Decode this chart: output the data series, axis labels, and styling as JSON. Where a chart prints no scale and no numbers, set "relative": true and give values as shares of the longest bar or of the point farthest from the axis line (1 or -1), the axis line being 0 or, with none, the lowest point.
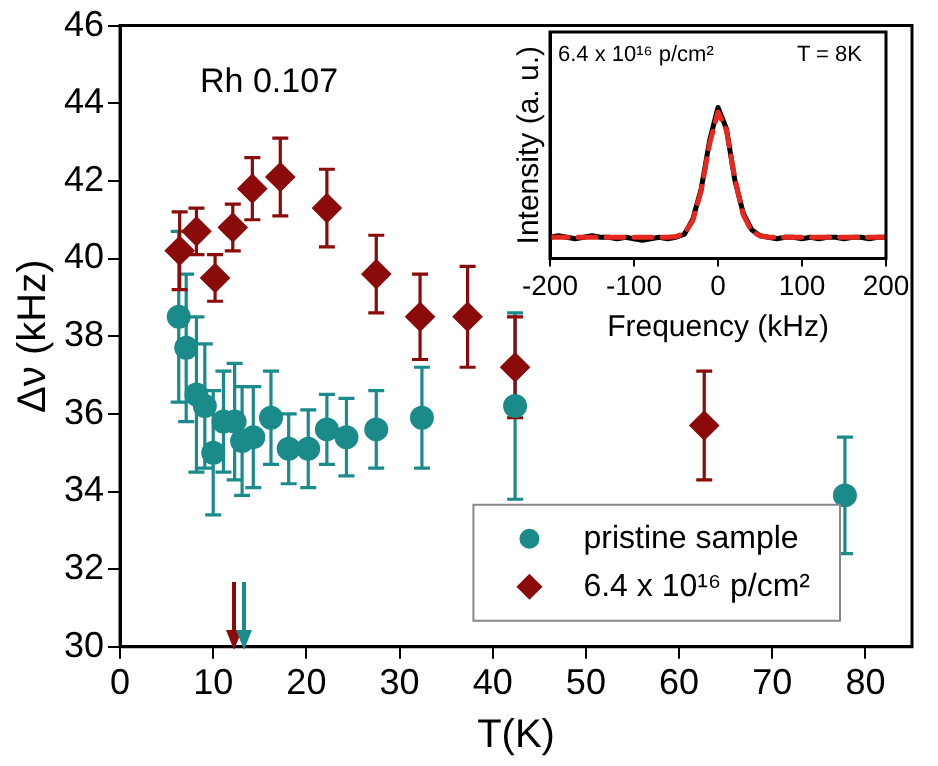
{
  "chart_data": [
    {
      "type": "scatter",
      "xlabel": "T(K)",
      "ylabel": "Δν (kHz)",
      "annotations": [
        "Rh 0.107"
      ],
      "xlim": [
        0,
        85
      ],
      "xticks": [
        0,
        10,
        20,
        30,
        40,
        50,
        60,
        70,
        80
      ],
      "ylim": [
        30,
        46
      ],
      "yticks": [
        30,
        32,
        34,
        36,
        38,
        40,
        42,
        44,
        46
      ],
      "grid": false,
      "legend": "bottom right",
      "series": [
        {
          "name": "pristine sample",
          "color": "#1a8a8a",
          "marker": "circle",
          "x": [
            6.3,
            7.1,
            8.2,
            9.1,
            10.0,
            11.1,
            12.3,
            13.1,
            14.3,
            16.2,
            18.1,
            20.2,
            22.2,
            24.3,
            27.5,
            32.4,
            42.4,
            77.8
          ],
          "values": [
            38.5,
            37.7,
            36.5,
            36.2,
            35.0,
            35.8,
            35.8,
            35.3,
            35.4,
            35.9,
            35.1,
            35.1,
            35.6,
            35.4,
            35.6,
            35.9,
            36.2,
            33.9
          ],
          "errors": [
            2.2,
            1.9,
            2.0,
            1.6,
            1.6,
            1.3,
            1.5,
            1.4,
            1.3,
            1.2,
            0.9,
            1.0,
            0.9,
            1.0,
            1.0,
            1.3,
            2.4,
            1.5
          ]
        },
        {
          "name": "6.4 x 10¹⁶ p/cm²",
          "color": "#8b0a0a",
          "marker": "diamond",
          "x": [
            6.4,
            8.2,
            10.2,
            12.1,
            14.2,
            17.2,
            22.2,
            27.5,
            32.2,
            37.3,
            42.4,
            62.7
          ],
          "values": [
            40.2,
            40.7,
            39.5,
            40.8,
            41.8,
            42.1,
            41.3,
            39.6,
            38.5,
            38.5,
            37.2,
            35.7
          ],
          "errors": [
            1.0,
            0.6,
            0.6,
            0.6,
            0.8,
            1.0,
            1.0,
            1.0,
            1.1,
            1.3,
            1.3,
            1.4
          ]
        }
      ]
    },
    {
      "type": "line",
      "xlabel": "Frequency (kHz)",
      "ylabel": "Intensity (a. u.)",
      "annotations": [
        "6.4 x 10¹⁶ p/cm²",
        "T = 8K"
      ],
      "relative": true,
      "xlim": [
        -200,
        200
      ],
      "xticks": [
        -200,
        -100,
        0,
        100,
        200
      ],
      "tick_labels": "x",
      "grid": false,
      "marker": "none",
      "series": [
        {
          "color": "#000000",
          "line_style": "solid",
          "x": [
            -200,
            -190,
            -180,
            -170,
            -160,
            -150,
            -140,
            -130,
            -120,
            -110,
            -100,
            -90,
            -80,
            -70,
            -60,
            -50,
            -40,
            -30,
            -20,
            -10,
            0,
            10,
            20,
            30,
            40,
            50,
            60,
            70,
            80,
            90,
            100,
            110,
            120,
            130,
            140,
            150,
            160,
            170,
            180,
            190,
            200
          ],
          "values": [
            0.14,
            0.15,
            0.14,
            0.13,
            0.14,
            0.15,
            0.14,
            0.14,
            0.13,
            0.14,
            0.13,
            0.12,
            0.13,
            0.14,
            0.13,
            0.14,
            0.16,
            0.26,
            0.46,
            0.78,
            1.0,
            0.86,
            0.52,
            0.3,
            0.19,
            0.15,
            0.14,
            0.13,
            0.14,
            0.14,
            0.13,
            0.14,
            0.13,
            0.14,
            0.14,
            0.13,
            0.14,
            0.14,
            0.13,
            0.14,
            0.14
          ]
        },
        {
          "color": "#e8281e",
          "line_style": "dashed",
          "x": [
            -200,
            -100,
            -60,
            -50,
            -40,
            -30,
            -20,
            -10,
            0,
            10,
            20,
            30,
            40,
            50,
            60,
            100,
            200
          ],
          "values": [
            0.14,
            0.14,
            0.14,
            0.145,
            0.165,
            0.25,
            0.45,
            0.76,
            0.97,
            0.85,
            0.53,
            0.29,
            0.18,
            0.15,
            0.14,
            0.14,
            0.14
          ]
        }
      ]
    }
  ]
}
